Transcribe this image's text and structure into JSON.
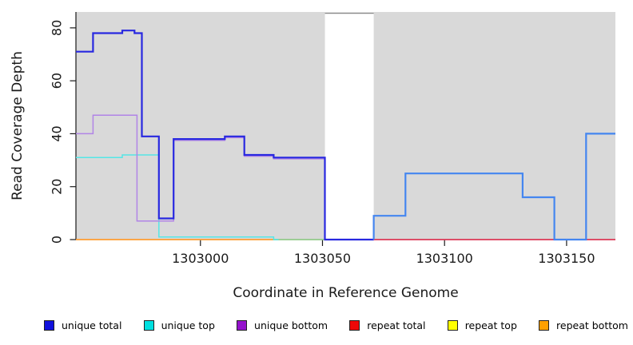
{
  "xlabel": "Coordinate in Reference Genome",
  "ylabel": "Read Coverage Depth",
  "chart_data": {
    "type": "line",
    "step": true,
    "title": "",
    "xlabel": "Coordinate in Reference Genome",
    "ylabel": "Read Coverage Depth",
    "xlim": [
      1302949,
      1303170
    ],
    "ylim": [
      0,
      86
    ],
    "grid": false,
    "x_ticks": [
      1303000,
      1303050,
      1303100,
      1303150
    ],
    "y_ticks": [
      0,
      20,
      40,
      60,
      80
    ],
    "plot_bg": "#d9d9d9",
    "axis_color": "#1a1a1a",
    "gap_band": {
      "x_from": 1303051,
      "x_to": 1303071,
      "color": "#ffffff",
      "top_edge_color": "#8a8a8a"
    },
    "series": [
      {
        "name": "repeat bottom",
        "parts": [
          {
            "color": "#ff9d30",
            "width": 1.8,
            "points": [
              [
                1302949,
                0
              ],
              [
                1303030,
                0
              ]
            ]
          }
        ]
      },
      {
        "name": "repeat top",
        "parts": [
          {
            "color": "#92c98a",
            "width": 1.8,
            "points": [
              [
                1303030,
                0
              ],
              [
                1303051,
                0
              ]
            ]
          }
        ]
      },
      {
        "name": "repeat total",
        "parts": [
          {
            "color": "#dd3856",
            "width": 1.8,
            "points": [
              [
                1303071,
                0
              ],
              [
                1303170,
                0
              ]
            ]
          }
        ]
      },
      {
        "name": "unique top",
        "parts": [
          {
            "color": "#55e6e6",
            "width": 1.5,
            "points": [
              [
                1302949,
                31
              ],
              [
                1302968,
                32
              ],
              [
                1302983,
                1
              ],
              [
                1303030,
                1
              ],
              [
                1303030,
                0
              ],
              [
                1303032,
                0
              ]
            ]
          }
        ]
      },
      {
        "name": "unique bottom",
        "parts": [
          {
            "color": "#b184e6",
            "width": 1.5,
            "points": [
              [
                1302949,
                40
              ],
              [
                1302956,
                47
              ],
              [
                1302974,
                7
              ],
              [
                1302989,
                37.5
              ],
              [
                1303010,
                38.5
              ],
              [
                1303018,
                31.5
              ],
              [
                1303030,
                30.5
              ],
              [
                1303051,
                0
              ],
              [
                1303071,
                0
              ]
            ]
          }
        ]
      },
      {
        "name": "unique total",
        "parts": [
          {
            "color": "#2828e0",
            "width": 2.2,
            "points": [
              [
                1302949,
                71
              ],
              [
                1302956,
                78
              ],
              [
                1302968,
                79
              ],
              [
                1302973,
                78
              ],
              [
                1302976,
                39
              ],
              [
                1302983,
                8
              ],
              [
                1302989,
                38
              ],
              [
                1303010,
                39
              ],
              [
                1303018,
                32
              ],
              [
                1303030,
                31
              ],
              [
                1303051,
                0
              ],
              [
                1303071,
                0
              ]
            ]
          },
          {
            "color": "#4486f0",
            "width": 2.2,
            "points": [
              [
                1303071,
                0
              ],
              [
                1303071,
                9
              ],
              [
                1303084,
                25
              ],
              [
                1303132,
                16
              ],
              [
                1303145,
                0
              ],
              [
                1303158,
                40
              ],
              [
                1303170,
                40
              ]
            ]
          }
        ]
      }
    ]
  },
  "legend": {
    "items": [
      {
        "label": "unique total",
        "color": "#1111dd"
      },
      {
        "label": "unique top",
        "color": "#00e0e0"
      },
      {
        "label": "unique bottom",
        "color": "#9412cc"
      },
      {
        "label": "repeat total",
        "color": "#ee0808"
      },
      {
        "label": "repeat top",
        "color": "#ffff00"
      },
      {
        "label": "repeat bottom",
        "color": "#ffa000"
      }
    ]
  }
}
